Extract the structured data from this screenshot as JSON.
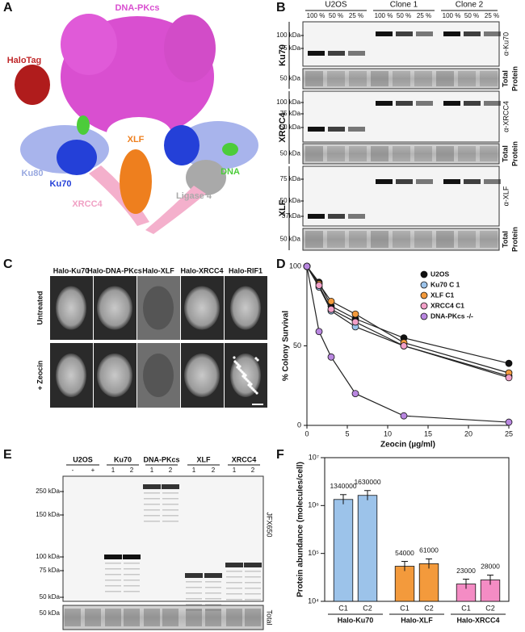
{
  "panel_letters": [
    "A",
    "B",
    "C",
    "D",
    "E",
    "F"
  ],
  "structure": {
    "labels": [
      "DNA-PKcs",
      "HaloTag",
      "XLF",
      "Ku80",
      "Ku70",
      "XRCC4",
      "Ligase 4",
      "DNA"
    ]
  },
  "western_b": {
    "groups": [
      "U2OS",
      "Clone 1",
      "Clone 2"
    ],
    "lanes": [
      "100 %",
      "50 %",
      "25 %"
    ],
    "total_label": [
      "Total",
      "Protein"
    ],
    "blots": [
      {
        "target": "Ku70",
        "antibody": "α-Ku70",
        "markers": [
          "100 kDa",
          "75 kDa"
        ],
        "total_marker": "50 kDa"
      },
      {
        "target": "XRCC4",
        "antibody": "α-XRCC4",
        "markers": [
          "100 kDa",
          "75 kDa",
          "50 kDa"
        ],
        "total_marker": "50 kDa"
      },
      {
        "target": "XLF",
        "antibody": "α-XLF",
        "markers": [
          "75 kDa",
          "50 kDa",
          "37kDa"
        ],
        "total_marker": "50 kDa"
      }
    ]
  },
  "imaging": {
    "proteins": [
      "Halo-Ku70",
      "Halo-DNA-PKcs",
      "Halo-XLF",
      "Halo-XRCC4",
      "Halo-RIF1"
    ],
    "conditions": [
      "Untreated",
      "+ Zeocin"
    ]
  },
  "western_e": {
    "groups": [
      "U2OS",
      "Ku70",
      "DNA-PKcs",
      "XLF",
      "XRCC4"
    ],
    "lanes": [
      "-",
      "+",
      "1",
      "2",
      "1",
      "2",
      "1",
      "2",
      "1",
      "2"
    ],
    "markers": [
      "250 kDa",
      "150 kDa",
      "100 kDa",
      "75 kDa",
      "50 kDa"
    ],
    "dye": "JFX650",
    "total_marker": "50 kDa",
    "total_label": "Total"
  },
  "chart_data": [
    {
      "type": "line",
      "xlabel": "Zeocin (µg/ml)",
      "ylabel": "% Colony Survival",
      "x": [
        0,
        1.5,
        3,
        6,
        12,
        25
      ],
      "xlim": [
        0,
        25
      ],
      "xticks": [
        0,
        5,
        10,
        15,
        20,
        25
      ],
      "ylim": [
        0,
        100
      ],
      "yticks": [
        0,
        50,
        100
      ],
      "legend": "upper right",
      "series": [
        {
          "name": "U2OS",
          "color": "#111111",
          "values": [
            100,
            90,
            75,
            67,
            55,
            39
          ]
        },
        {
          "name": "Ku70 C 1",
          "color": "#9cc3ea",
          "values": [
            100,
            87,
            72,
            62,
            50,
            31
          ]
        },
        {
          "name": "XLF C1",
          "color": "#f39a3c",
          "values": [
            100,
            89,
            78,
            70,
            52,
            33
          ]
        },
        {
          "name": "XRCC4 C1",
          "color": "#f2a0c8",
          "values": [
            100,
            88,
            73,
            65,
            50,
            30
          ]
        },
        {
          "name": "DNA-PKcs -/-",
          "color": "#b987e0",
          "values": [
            100,
            59,
            43,
            20,
            6,
            2
          ]
        }
      ]
    },
    {
      "type": "bar",
      "ylabel": "Protein abundance (molecules/cell)",
      "categories": [
        "C1",
        "C2",
        "C1",
        "C2",
        "C1",
        "C2"
      ],
      "groups": [
        "Halo-Ku70",
        "Halo-XLF",
        "Halo-XRCC4"
      ],
      "values": [
        1340000,
        1630000,
        54000,
        61000,
        23000,
        28000
      ],
      "colors": [
        "#9cc3ea",
        "#9cc3ea",
        "#f39a3c",
        "#f39a3c",
        "#f48cc4",
        "#f48cc4"
      ],
      "log_scale": true,
      "ylim": [
        10000,
        10000000
      ],
      "yticks": [
        {
          "value": 10000,
          "label": "10⁴"
        },
        {
          "value": 100000,
          "label": "10⁵"
        },
        {
          "value": 1000000,
          "label": "10⁶"
        },
        {
          "value": 10000000,
          "label": "10⁷"
        }
      ]
    }
  ]
}
